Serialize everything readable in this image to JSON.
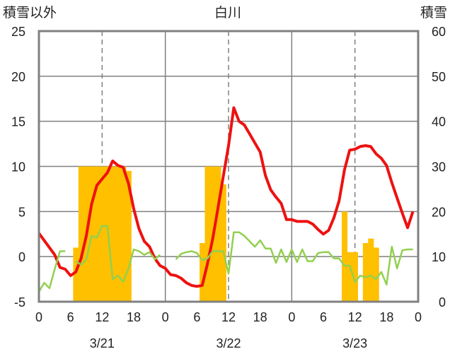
{
  "chart_data": {
    "type": "bar+line",
    "title": "白川",
    "left_axis_label": "積雪以外",
    "right_axis_label": "積雪",
    "left_axis": {
      "min": -5,
      "max": 25,
      "ticks": [
        "-5",
        "0",
        "5",
        "10",
        "15",
        "20",
        "25"
      ]
    },
    "right_axis": {
      "min": 0,
      "max": 60,
      "ticks": [
        "0",
        "10",
        "20",
        "30",
        "40",
        "50",
        "60"
      ]
    },
    "x_hour_ticks": [
      "0",
      "6",
      "12",
      "18",
      "0",
      "6",
      "12",
      "18",
      "0",
      "6",
      "12",
      "18",
      "0"
    ],
    "day_labels": [
      "3/21",
      "3/22",
      "3/23"
    ],
    "x_range_hours": [
      0,
      72
    ],
    "gridlines": "dashed at hour 12 of each day, solid day separators",
    "colors": {
      "temperature": "#ee1111",
      "wind": "#92d050",
      "snow_depth": "#ffc000",
      "baseline": "#7030a0",
      "frame": "#808080"
    },
    "series": [
      {
        "kind": "bar",
        "axis": "right",
        "values": [
          [
            7,
            12
          ],
          [
            8,
            30
          ],
          [
            9,
            30
          ],
          [
            10,
            30
          ],
          [
            11,
            30
          ],
          [
            12,
            30
          ],
          [
            13,
            30
          ],
          [
            14,
            30
          ],
          [
            15,
            30
          ],
          [
            16,
            30
          ],
          [
            17,
            29
          ],
          [
            31,
            13
          ],
          [
            32,
            30
          ],
          [
            33,
            30
          ],
          [
            34,
            30
          ],
          [
            35,
            26
          ],
          [
            58,
            20
          ],
          [
            59,
            11
          ],
          [
            60,
            11
          ],
          [
            62,
            13
          ],
          [
            63,
            14
          ],
          [
            64,
            12
          ]
        ]
      },
      {
        "kind": "line",
        "axis": "left",
        "color": "#ee1111",
        "values": [
          [
            0,
            2.6
          ],
          [
            1,
            1.8
          ],
          [
            2,
            1.0
          ],
          [
            3,
            0.2
          ],
          [
            4,
            -1.2
          ],
          [
            5,
            -1.4
          ],
          [
            6,
            -2.1
          ],
          [
            7,
            -1.7
          ],
          [
            8,
            -0.2
          ],
          [
            9,
            2.3
          ],
          [
            10,
            5.8
          ],
          [
            11,
            7.9
          ],
          [
            12,
            8.6
          ],
          [
            13,
            9.3
          ],
          [
            14,
            10.6
          ],
          [
            15,
            10.1
          ],
          [
            16,
            9.9
          ],
          [
            17,
            8.1
          ],
          [
            18,
            5.3
          ],
          [
            19,
            3.1
          ],
          [
            20,
            1.7
          ],
          [
            21,
            1.1
          ],
          [
            22,
            -0.2
          ],
          [
            23,
            -1.0
          ],
          [
            24,
            -1.3
          ],
          [
            25,
            -2.0
          ],
          [
            26,
            -2.1
          ],
          [
            27,
            -2.4
          ],
          [
            28,
            -2.9
          ],
          [
            29,
            -3.2
          ],
          [
            30,
            -3.3
          ],
          [
            31,
            -3.2
          ],
          [
            32,
            -0.8
          ],
          [
            33,
            2.0
          ],
          [
            34,
            5.4
          ],
          [
            35,
            8.9
          ],
          [
            36,
            12.3
          ],
          [
            37,
            16.5
          ],
          [
            38,
            15.0
          ],
          [
            39,
            14.6
          ],
          [
            40,
            13.6
          ],
          [
            41,
            12.6
          ],
          [
            42,
            11.6
          ],
          [
            43,
            9.0
          ],
          [
            44,
            7.4
          ],
          [
            45,
            6.6
          ],
          [
            46,
            5.9
          ],
          [
            47,
            4.1
          ],
          [
            48,
            4.1
          ],
          [
            49,
            3.9
          ],
          [
            50,
            3.9
          ],
          [
            51,
            3.9
          ],
          [
            52,
            3.6
          ],
          [
            53,
            3.0
          ],
          [
            54,
            2.5
          ],
          [
            55,
            2.9
          ],
          [
            56,
            4.3
          ],
          [
            57,
            6.2
          ],
          [
            58,
            9.6
          ],
          [
            59,
            11.8
          ],
          [
            60,
            11.9
          ],
          [
            61,
            12.2
          ],
          [
            62,
            12.3
          ],
          [
            63,
            12.2
          ],
          [
            64,
            11.4
          ],
          [
            65,
            10.9
          ],
          [
            66,
            10.1
          ],
          [
            67,
            8.2
          ],
          [
            68,
            6.5
          ],
          [
            69,
            4.8
          ],
          [
            70,
            3.2
          ],
          [
            71,
            5.0
          ]
        ]
      },
      {
        "kind": "line",
        "axis": "left",
        "color": "#92d050",
        "values": [
          [
            0,
            -3.9
          ],
          [
            1,
            -2.9
          ],
          [
            2,
            -3.5
          ],
          [
            3,
            -1.4
          ],
          [
            4,
            0.6
          ],
          [
            5,
            0.6
          ],
          [
            7,
            -0.5
          ],
          [
            8,
            -0.9
          ],
          [
            9,
            -0.3
          ],
          [
            10,
            2.3
          ],
          [
            11,
            2.1
          ],
          [
            12,
            3.4
          ],
          [
            13,
            3.4
          ],
          [
            14,
            -2.5
          ],
          [
            15,
            -2.1
          ],
          [
            16,
            -2.8
          ],
          [
            17,
            -1.3
          ],
          [
            18,
            0.8
          ],
          [
            19,
            0.6
          ],
          [
            20,
            0.2
          ],
          [
            21,
            0.5
          ],
          [
            22,
            -0.3
          ],
          [
            23,
            0.2
          ],
          [
            26,
            -0.3
          ],
          [
            27,
            0.3
          ],
          [
            28,
            0.5
          ],
          [
            29,
            0.6
          ],
          [
            30,
            0.4
          ],
          [
            31,
            -0.4
          ],
          [
            32,
            -0.2
          ],
          [
            33,
            0.6
          ],
          [
            34,
            0.6
          ],
          [
            35,
            0.6
          ],
          [
            36,
            -1.9
          ],
          [
            37,
            2.7
          ],
          [
            38,
            2.7
          ],
          [
            39,
            2.3
          ],
          [
            40,
            1.7
          ],
          [
            41,
            1.1
          ],
          [
            42,
            1.8
          ],
          [
            43,
            0.9
          ],
          [
            44,
            0.9
          ],
          [
            45,
            -0.7
          ],
          [
            46,
            0.8
          ],
          [
            47,
            -0.6
          ],
          [
            48,
            0.8
          ],
          [
            49,
            -0.6
          ],
          [
            50,
            0.8
          ],
          [
            51,
            -0.5
          ],
          [
            52,
            -0.5
          ],
          [
            53,
            0.4
          ],
          [
            54,
            0.5
          ],
          [
            55,
            0.5
          ],
          [
            56,
            -0.2
          ],
          [
            57,
            -0.2
          ],
          [
            58,
            -1.0
          ],
          [
            59,
            -1.0
          ],
          [
            60,
            -2.8
          ],
          [
            61,
            -2.1
          ],
          [
            62,
            -2.3
          ],
          [
            63,
            -2.1
          ],
          [
            64,
            -2.5
          ],
          [
            65,
            -1.7
          ],
          [
            66,
            -3.1
          ],
          [
            67,
            1.1
          ],
          [
            68,
            -1.3
          ],
          [
            69,
            0.7
          ],
          [
            70,
            0.8
          ],
          [
            71,
            0.8
          ]
        ]
      },
      {
        "kind": "line",
        "axis": "left",
        "color": "#7030a0",
        "values": [
          [
            0,
            -5
          ],
          [
            72,
            -5
          ]
        ]
      }
    ]
  }
}
